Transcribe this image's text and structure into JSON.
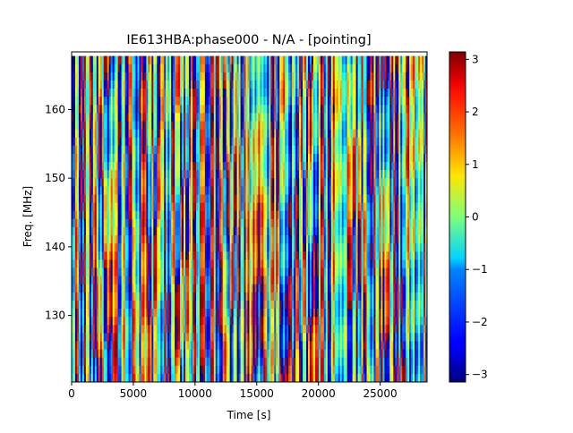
{
  "chart_data": {
    "type": "heatmap",
    "title": "IE613HBA:phase000 - N/A - [pointing]",
    "xlabel": "Time [s]",
    "ylabel": "Freq. [MHz]",
    "xlim": [
      0,
      28800
    ],
    "ylim": [
      120.3,
      168.4
    ],
    "x_ticks": [
      0,
      5000,
      10000,
      15000,
      20000,
      25000
    ],
    "x_tick_labels": [
      "0",
      "5000",
      "10000",
      "15000",
      "20000",
      "25000"
    ],
    "y_ticks": [
      130,
      140,
      150,
      160
    ],
    "y_tick_labels": [
      "130",
      "140",
      "150",
      "160"
    ],
    "colormap": "jet",
    "colorbar": {
      "vmin": -3.1416,
      "vmax": 3.1416,
      "ticks": [
        -3,
        -2,
        -1,
        0,
        1,
        2,
        3
      ],
      "tick_labels": [
        "−3",
        "−2",
        "−1",
        "0",
        "1",
        "2",
        "3"
      ]
    },
    "data_top_freq": 167.8,
    "grid": false,
    "description_values": "phase (rad) wrapping in [-pi, pi], vertical stripes varying with time"
  }
}
